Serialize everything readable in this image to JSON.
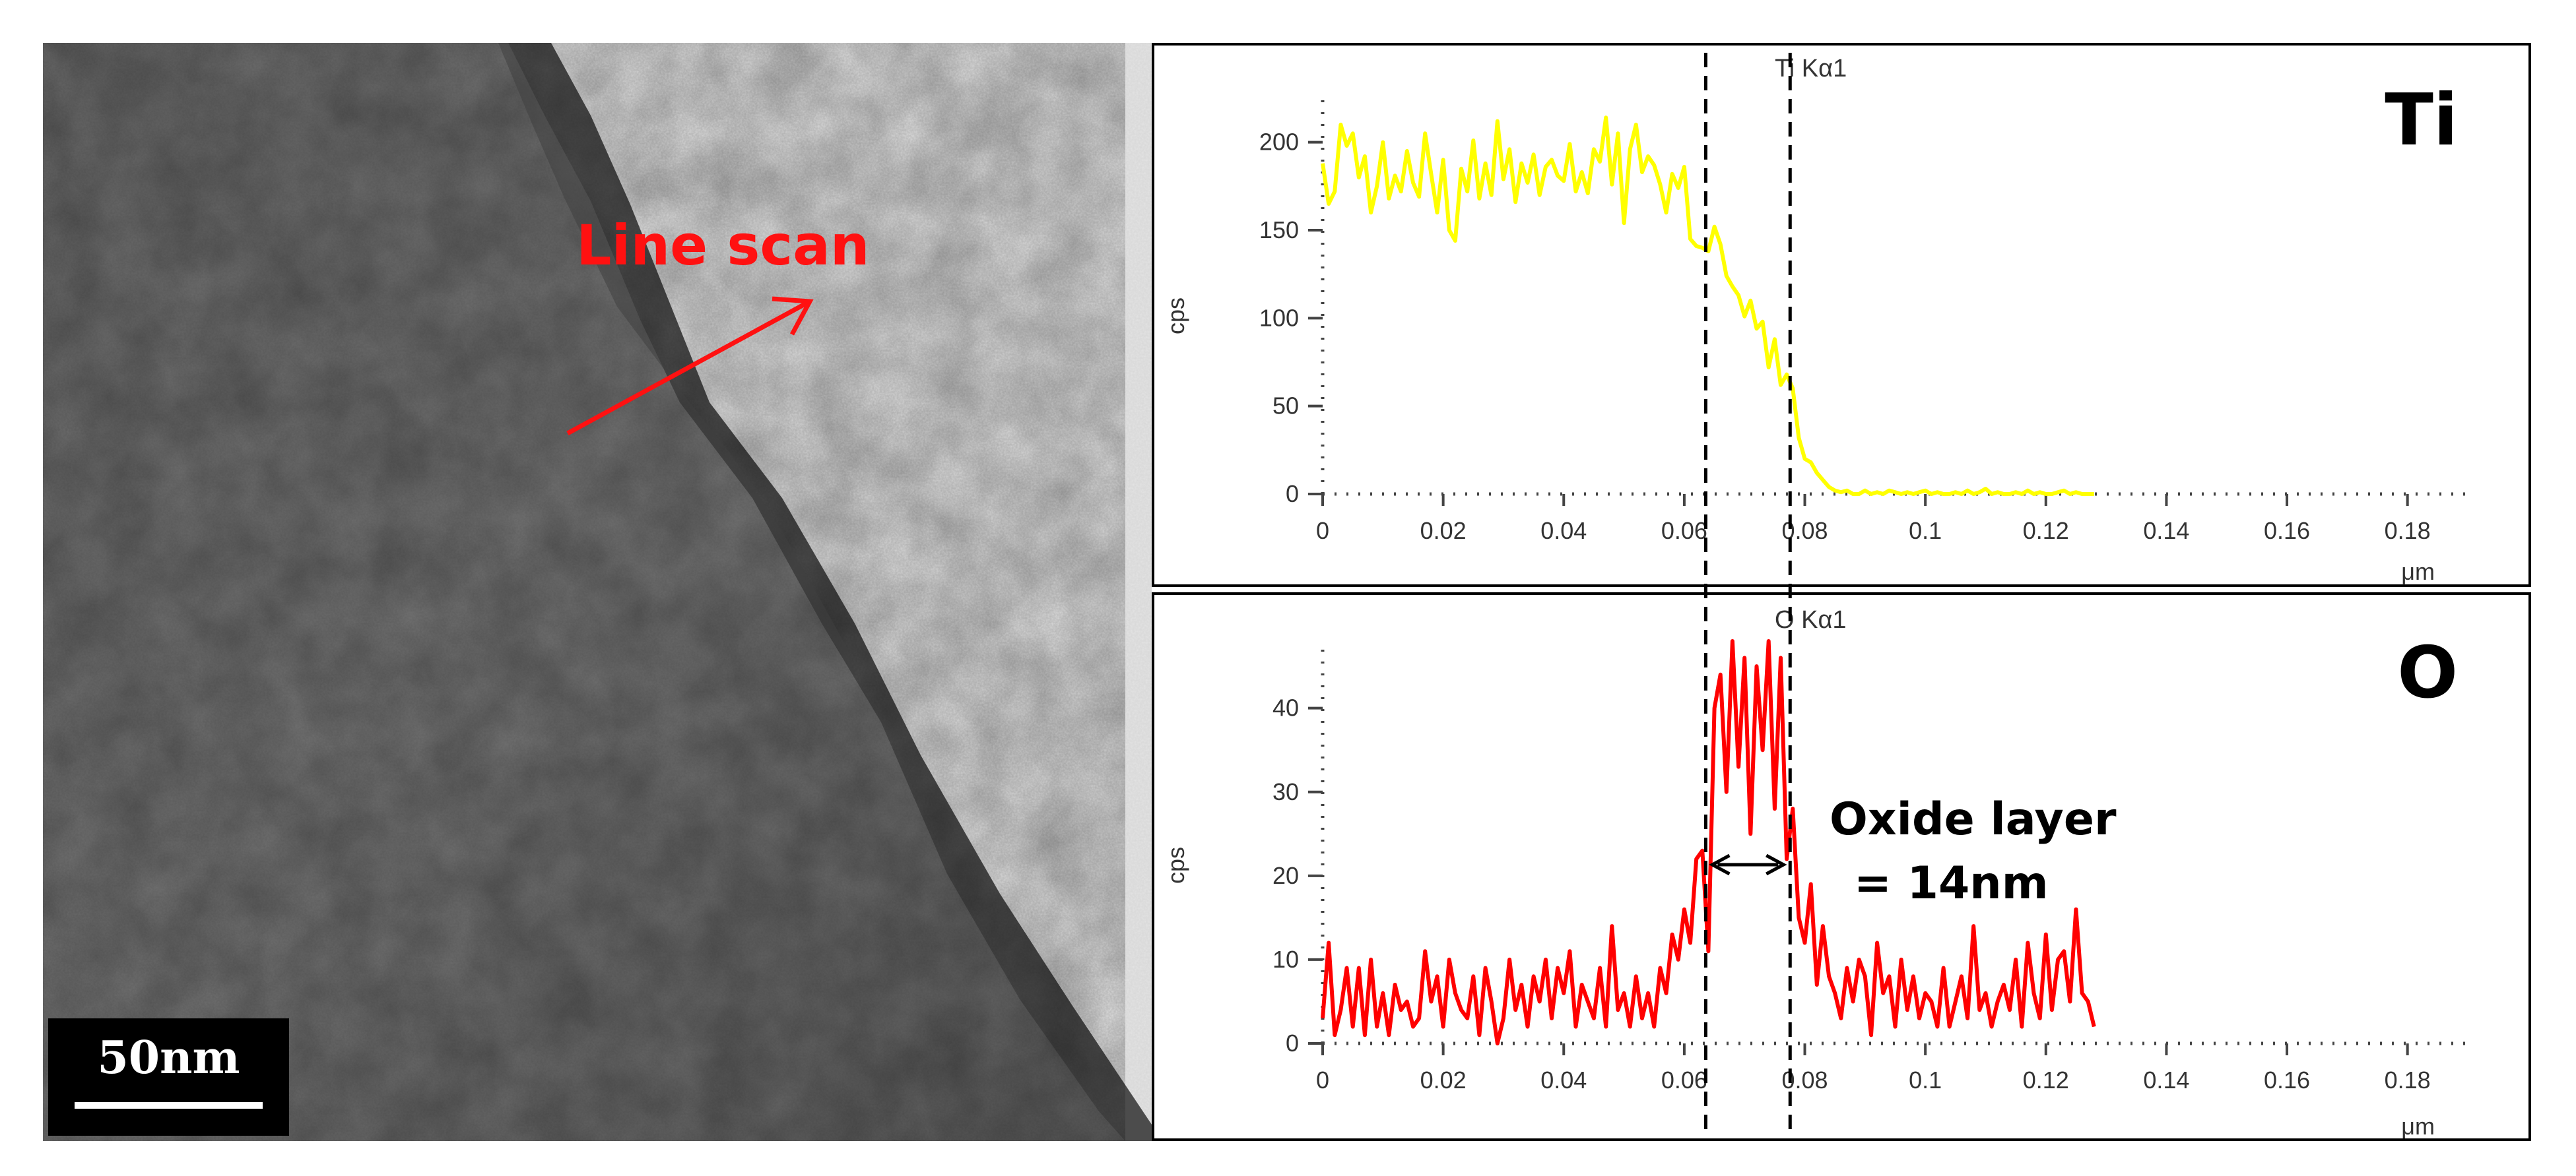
{
  "tem_image": {
    "scale_bar_label": "50nm",
    "arrow_label": "Line scan",
    "arrow_color": "#ff1111"
  },
  "annotation": {
    "oxide_line1": "Oxide layer",
    "oxide_line2": "= 14nm",
    "boundaries_um": [
      0.064,
      0.078
    ]
  },
  "chart_data": [
    {
      "type": "line",
      "element": "Ti",
      "peak_title": "Ti Kα1",
      "ylabel": "cps",
      "xlabel": "μm",
      "color": "#ffff00",
      "xlim": [
        0,
        0.19
      ],
      "ylim": [
        0,
        225
      ],
      "x_ticks": [
        0,
        0.02,
        0.04,
        0.06,
        0.08,
        0.1,
        0.12,
        0.14,
        0.16,
        0.18
      ],
      "y_ticks": [
        0,
        50,
        100,
        150,
        200
      ],
      "x": [
        0,
        0.001,
        0.002,
        0.003,
        0.004,
        0.005,
        0.006,
        0.007,
        0.008,
        0.009,
        0.01,
        0.011,
        0.012,
        0.013,
        0.014,
        0.015,
        0.016,
        0.017,
        0.018,
        0.019,
        0.02,
        0.021,
        0.022,
        0.023,
        0.024,
        0.025,
        0.026,
        0.027,
        0.028,
        0.029,
        0.03,
        0.031,
        0.032,
        0.033,
        0.034,
        0.035,
        0.036,
        0.037,
        0.038,
        0.039,
        0.04,
        0.041,
        0.042,
        0.043,
        0.044,
        0.045,
        0.046,
        0.047,
        0.048,
        0.049,
        0.05,
        0.051,
        0.052,
        0.053,
        0.054,
        0.055,
        0.056,
        0.057,
        0.058,
        0.059,
        0.06,
        0.061,
        0.062,
        0.063,
        0.064,
        0.065,
        0.066,
        0.067,
        0.068,
        0.069,
        0.07,
        0.071,
        0.072,
        0.073,
        0.074,
        0.075,
        0.076,
        0.077,
        0.078,
        0.079,
        0.08,
        0.081,
        0.082,
        0.083,
        0.084,
        0.085,
        0.086,
        0.087,
        0.088,
        0.089,
        0.09,
        0.091,
        0.092,
        0.093,
        0.094,
        0.095,
        0.096,
        0.097,
        0.098,
        0.099,
        0.1,
        0.101,
        0.102,
        0.103,
        0.104,
        0.105,
        0.106,
        0.107,
        0.108,
        0.109,
        0.11,
        0.111,
        0.112,
        0.113,
        0.114,
        0.115,
        0.116,
        0.117,
        0.118,
        0.119,
        0.12,
        0.121,
        0.122,
        0.123,
        0.124,
        0.125,
        0.126,
        0.127,
        0.128
      ],
      "y": [
        188,
        165,
        172,
        210,
        198,
        205,
        180,
        192,
        160,
        175,
        200,
        168,
        181,
        172,
        195,
        177,
        169,
        205,
        182,
        160,
        190,
        150,
        144,
        185,
        172,
        201,
        168,
        188,
        170,
        212,
        179,
        196,
        166,
        188,
        177,
        193,
        170,
        186,
        190,
        181,
        178,
        199,
        172,
        183,
        171,
        196,
        189,
        214,
        176,
        205,
        154,
        196,
        210,
        183,
        192,
        187,
        176,
        160,
        182,
        174,
        186,
        145,
        141,
        140,
        138,
        152,
        142,
        124,
        118,
        113,
        101,
        110,
        94,
        98,
        72,
        88,
        62,
        68,
        60,
        32,
        20,
        18,
        12,
        8,
        4,
        2,
        1,
        2,
        0,
        0,
        2,
        0,
        1,
        0,
        2,
        1,
        0,
        1,
        0,
        1,
        2,
        0,
        1,
        0,
        0,
        1,
        0,
        2,
        0,
        1,
        3,
        0,
        1,
        0,
        0,
        1,
        0,
        2,
        0,
        1,
        0,
        0,
        1,
        2,
        0,
        1,
        0,
        0,
        0
      ]
    },
    {
      "type": "line",
      "element": "O",
      "peak_title": "O Kα1",
      "ylabel": "cps",
      "xlabel": "μm",
      "color": "#ff0000",
      "xlim": [
        0,
        0.19
      ],
      "ylim": [
        0,
        48
      ],
      "x_ticks": [
        0,
        0.02,
        0.04,
        0.06,
        0.08,
        0.1,
        0.12,
        0.14,
        0.16,
        0.18
      ],
      "y_ticks": [
        0,
        10,
        20,
        30,
        40
      ],
      "x": [
        0,
        0.001,
        0.002,
        0.003,
        0.004,
        0.005,
        0.006,
        0.007,
        0.008,
        0.009,
        0.01,
        0.011,
        0.012,
        0.013,
        0.014,
        0.015,
        0.016,
        0.017,
        0.018,
        0.019,
        0.02,
        0.021,
        0.022,
        0.023,
        0.024,
        0.025,
        0.026,
        0.027,
        0.028,
        0.029,
        0.03,
        0.031,
        0.032,
        0.033,
        0.034,
        0.035,
        0.036,
        0.037,
        0.038,
        0.039,
        0.04,
        0.041,
        0.042,
        0.043,
        0.044,
        0.045,
        0.046,
        0.047,
        0.048,
        0.049,
        0.05,
        0.051,
        0.052,
        0.053,
        0.054,
        0.055,
        0.056,
        0.057,
        0.058,
        0.059,
        0.06,
        0.061,
        0.062,
        0.063,
        0.064,
        0.065,
        0.066,
        0.067,
        0.068,
        0.069,
        0.07,
        0.071,
        0.072,
        0.073,
        0.074,
        0.075,
        0.076,
        0.077,
        0.078,
        0.079,
        0.08,
        0.081,
        0.082,
        0.083,
        0.084,
        0.085,
        0.086,
        0.087,
        0.088,
        0.089,
        0.09,
        0.091,
        0.092,
        0.093,
        0.094,
        0.095,
        0.096,
        0.097,
        0.098,
        0.099,
        0.1,
        0.101,
        0.102,
        0.103,
        0.104,
        0.105,
        0.106,
        0.107,
        0.108,
        0.109,
        0.11,
        0.111,
        0.112,
        0.113,
        0.114,
        0.115,
        0.116,
        0.117,
        0.118,
        0.119,
        0.12,
        0.121,
        0.122,
        0.123,
        0.124,
        0.125,
        0.126,
        0.127,
        0.128
      ],
      "y": [
        3,
        12,
        1,
        4,
        9,
        2,
        9,
        1,
        10,
        2,
        6,
        1,
        7,
        4,
        5,
        2,
        3,
        11,
        5,
        8,
        2,
        10,
        6,
        4,
        3,
        8,
        1,
        9,
        5,
        0,
        3,
        10,
        4,
        7,
        2,
        8,
        5,
        10,
        3,
        9,
        6,
        11,
        2,
        7,
        5,
        3,
        9,
        2,
        14,
        4,
        6,
        2,
        8,
        3,
        6,
        2,
        9,
        6,
        13,
        10,
        16,
        12,
        22,
        23,
        11,
        40,
        44,
        30,
        48,
        33,
        46,
        25,
        45,
        35,
        48,
        28,
        46,
        22,
        28,
        15,
        12,
        19,
        7,
        14,
        8,
        6,
        3,
        9,
        5,
        10,
        8,
        1,
        12,
        6,
        8,
        2,
        10,
        4,
        8,
        3,
        6,
        5,
        2,
        9,
        2,
        5,
        8,
        3,
        14,
        4,
        6,
        2,
        5,
        7,
        4,
        10,
        2,
        12,
        6,
        3,
        13,
        4,
        10,
        11,
        5,
        16,
        6,
        5,
        2
      ]
    }
  ]
}
